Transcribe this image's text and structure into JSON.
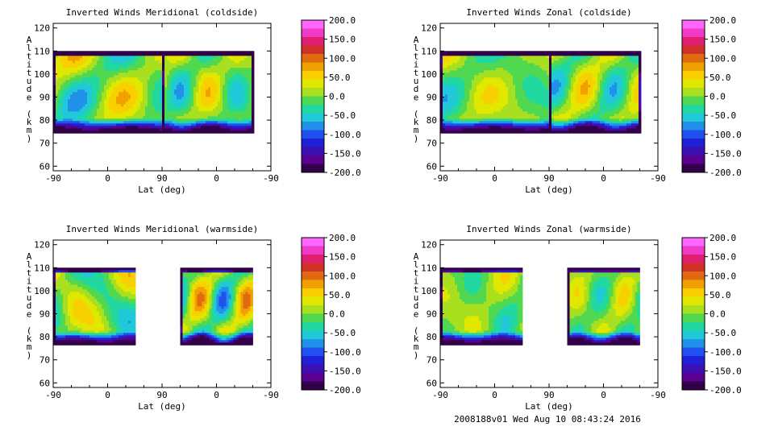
{
  "footer": "2008188v01 Wed Aug 10 08:43:24 2016",
  "colorbar": {
    "levels": [
      200.0,
      150.0,
      100.0,
      50.0,
      0.0,
      -50.0,
      -100.0,
      -150.0,
      -200.0
    ],
    "labels": [
      "200.0",
      "150.0",
      "100.0",
      "50.0",
      "0.0",
      "-50.0",
      "-100.0",
      "-150.0",
      "-200.0"
    ],
    "colors_top_to_bottom": [
      "#ff66ff",
      "#f03ac8",
      "#e0206e",
      "#d0322a",
      "#e06a10",
      "#f0a000",
      "#f8d000",
      "#e0e800",
      "#a8e020",
      "#50d850",
      "#20d8a0",
      "#20c8d8",
      "#2090e8",
      "#2050f0",
      "#2020d8",
      "#3a10b0",
      "#5a0090",
      "#320048"
    ]
  },
  "chart_data": [
    {
      "type": "heatmap",
      "title": "Inverted Winds Meridional (coldside)",
      "xlabel": "Lat (deg)",
      "ylabel": "Altitude (km)",
      "x_ticks": [
        "-90",
        "0",
        "90",
        "0",
        "-90"
      ],
      "y_ticks": [
        "60",
        "70",
        "80",
        "90",
        "100",
        "110",
        "120"
      ],
      "ylim": [
        58,
        122
      ],
      "clim": [
        -200,
        200
      ],
      "data_extent": {
        "seg1": [
          -90,
          90
        ],
        "seg2": [
          90,
          -60
        ],
        "altitude": [
          75,
          110
        ]
      },
      "field_peak": 60
    },
    {
      "type": "heatmap",
      "title": "Inverted Winds Zonal (coldside)",
      "xlabel": "Lat (deg)",
      "ylabel": "Altitude (km)",
      "x_ticks": [
        "-90",
        "0",
        "90",
        "0",
        "-90"
      ],
      "y_ticks": [
        "60",
        "70",
        "80",
        "90",
        "100",
        "110",
        "120"
      ],
      "ylim": [
        58,
        122
      ],
      "clim": [
        -200,
        200
      ],
      "data_extent": {
        "seg1": [
          -90,
          90
        ],
        "seg2": [
          90,
          -60
        ],
        "altitude": [
          75,
          110
        ]
      },
      "field_peak": 50
    },
    {
      "type": "heatmap",
      "title": "Inverted Winds Meridional (warmside)",
      "xlabel": "Lat (deg)",
      "ylabel": "Altitude (km)",
      "x_ticks": [
        "-90",
        "0",
        "90",
        "0",
        "-90"
      ],
      "y_ticks": [
        "60",
        "70",
        "80",
        "90",
        "100",
        "110",
        "120"
      ],
      "ylim": [
        58,
        122
      ],
      "clim": [
        -200,
        200
      ],
      "data_extent": {
        "seg1": [
          -90,
          45
        ],
        "seg2": [
          60,
          -60
        ],
        "altitude": [
          77,
          110
        ]
      },
      "field_peak": 80
    },
    {
      "type": "heatmap",
      "title": "Inverted Winds Zonal (warmside)",
      "xlabel": "Lat (deg)",
      "ylabel": "Altitude (km)",
      "x_ticks": [
        "-90",
        "0",
        "90",
        "0",
        "-90"
      ],
      "y_ticks": [
        "60",
        "70",
        "80",
        "90",
        "100",
        "110",
        "120"
      ],
      "ylim": [
        58,
        122
      ],
      "clim": [
        -200,
        200
      ],
      "data_extent": {
        "seg1": [
          -90,
          45
        ],
        "seg2": [
          60,
          -60
        ],
        "altitude": [
          77,
          110
        ]
      },
      "field_peak": 40
    }
  ]
}
